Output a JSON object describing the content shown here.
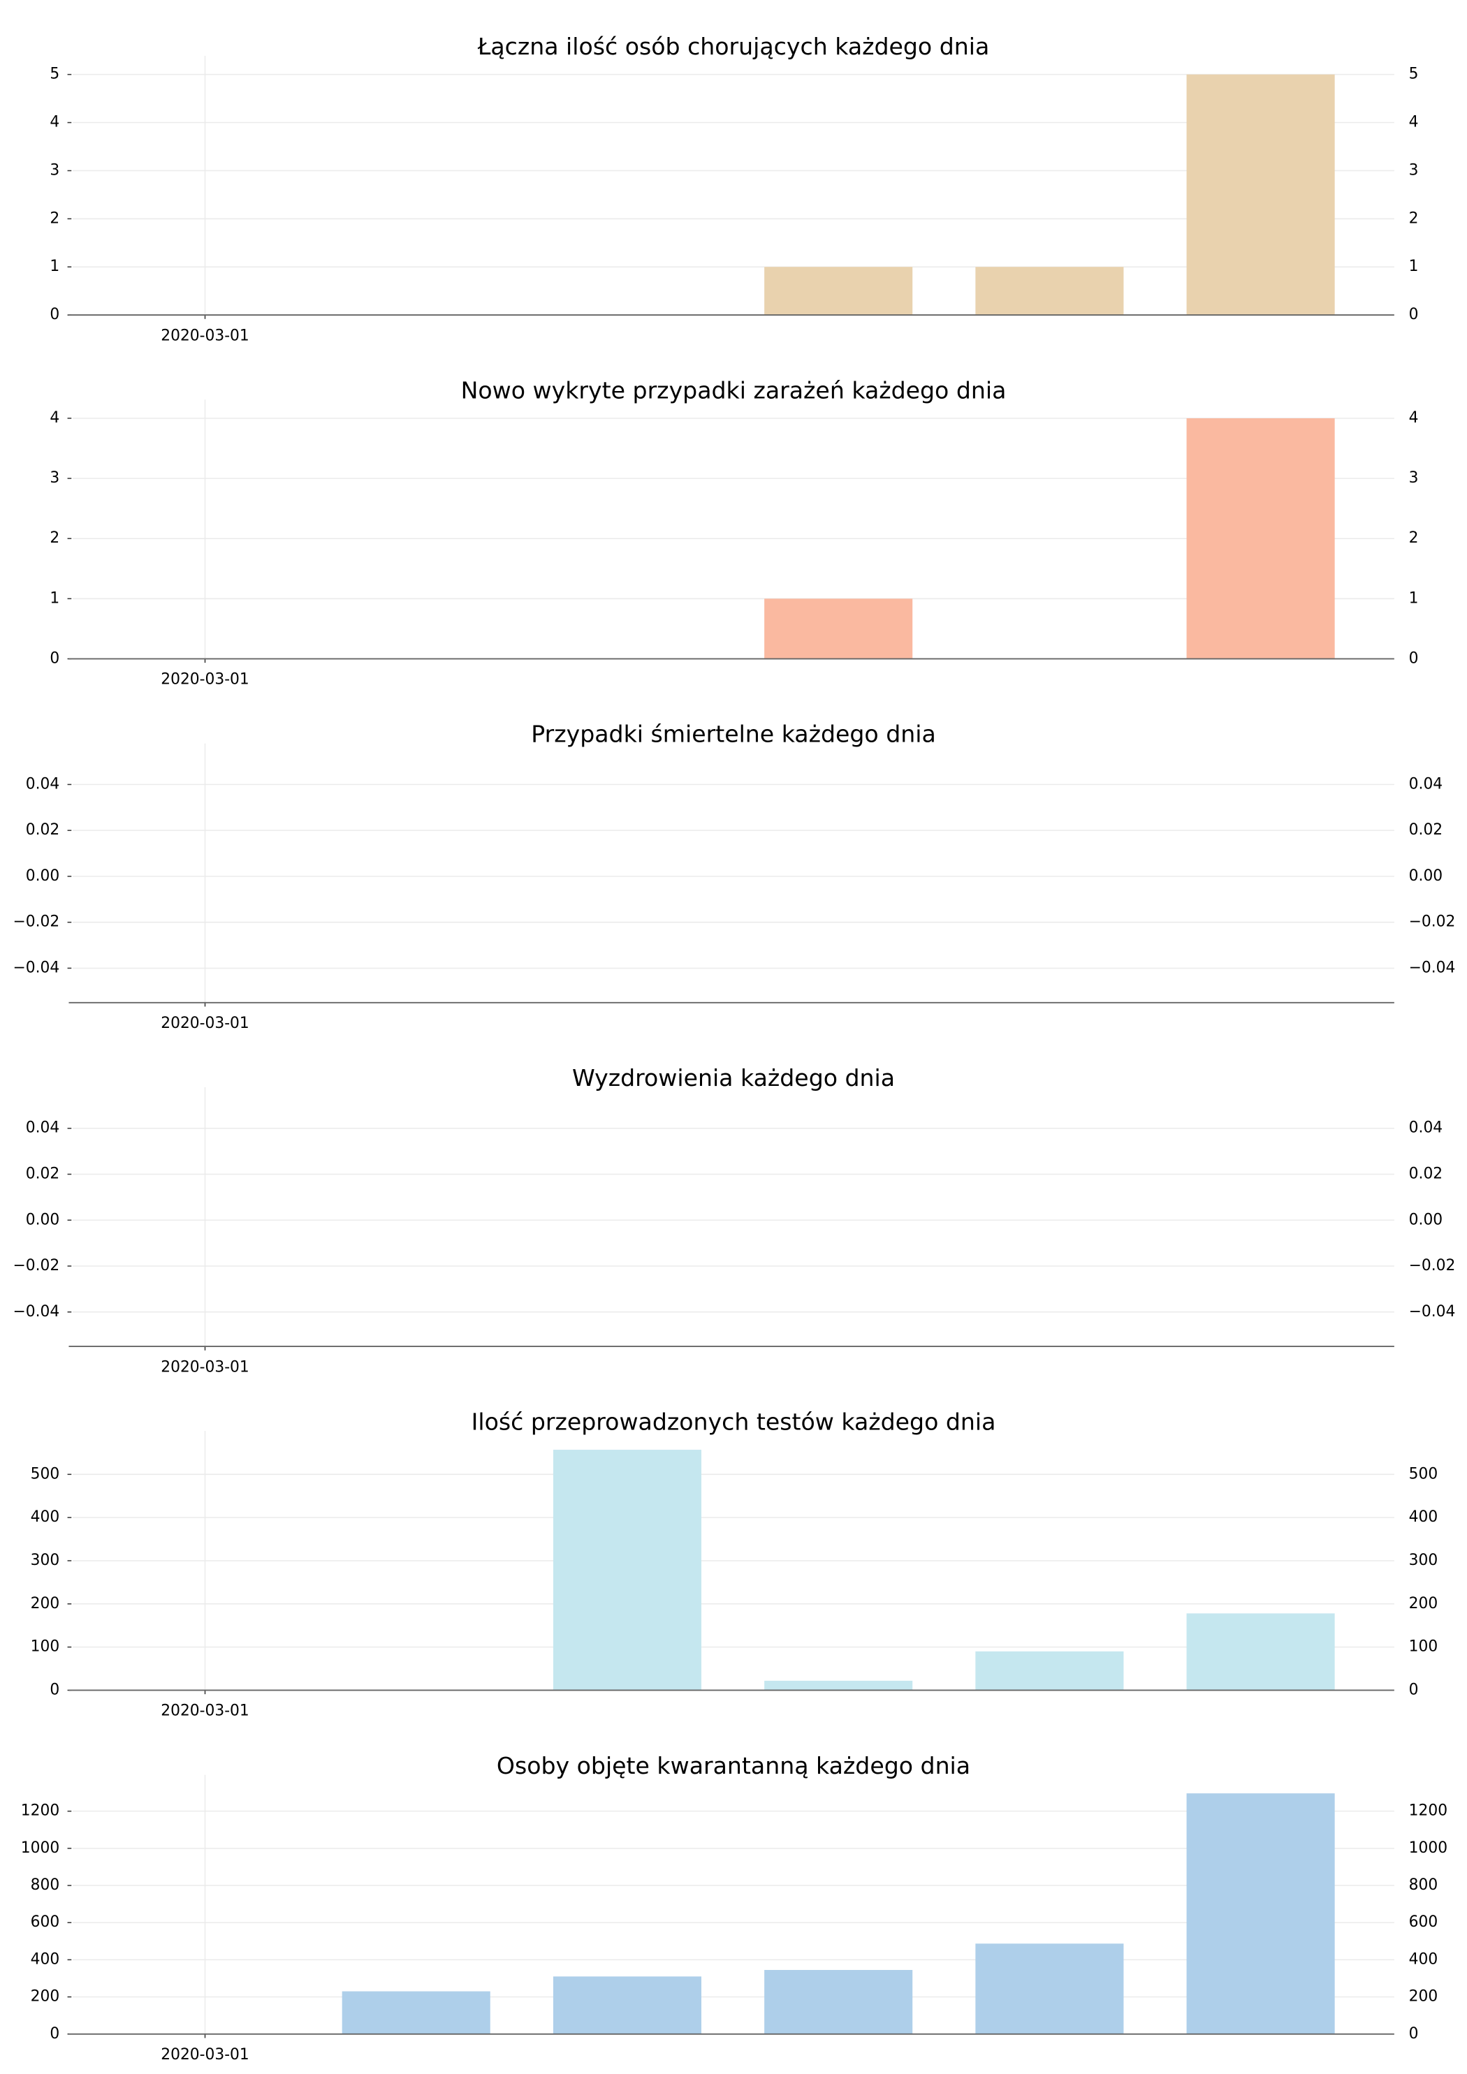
{
  "chart_data": [
    {
      "type": "bar",
      "title": "Łączna ilość osób chorujących każdego dnia",
      "categories": [
        "2020-03-01",
        null,
        null,
        null,
        null,
        null
      ],
      "values": [
        0,
        0,
        0,
        1,
        1,
        5
      ],
      "color": "#e9d2ae",
      "ylim": [
        0,
        5.25
      ],
      "yticks": [
        0,
        1,
        2,
        3,
        4,
        5
      ],
      "grid": true
    },
    {
      "type": "bar",
      "title": "Nowo wykryte przypadki zarażeń każdego dnia",
      "categories": [
        "2020-03-01",
        null,
        null,
        null,
        null,
        null
      ],
      "values": [
        0,
        0,
        0,
        1,
        0,
        4
      ],
      "color": "#fab9a0",
      "ylim": [
        0,
        4.2
      ],
      "yticks": [
        0,
        1,
        2,
        3,
        4
      ],
      "grid": true
    },
    {
      "type": "bar",
      "title": "Przypadki śmiertelne każdego dnia",
      "categories": [
        "2020-03-01",
        null,
        null,
        null,
        null,
        null
      ],
      "values": [
        0,
        0,
        0,
        0,
        0,
        0
      ],
      "color": "#c8c8c8",
      "ylim": [
        -0.055,
        0.055
      ],
      "yticks": [
        {
          "value": -0.04,
          "label": "−0.04"
        },
        {
          "value": -0.02,
          "label": "−0.02"
        },
        {
          "value": 0,
          "label": "0.00"
        },
        0.02,
        0.04
      ],
      "grid": true
    },
    {
      "type": "bar",
      "title": "Wyzdrowienia każdego dnia",
      "categories": [
        "2020-03-01",
        null,
        null,
        null,
        null,
        null
      ],
      "values": [
        0,
        0,
        0,
        0,
        0,
        0
      ],
      "color": "#c8c8c8",
      "ylim": [
        -0.055,
        0.055
      ],
      "yticks": [
        {
          "value": -0.04,
          "label": "−0.04"
        },
        {
          "value": -0.02,
          "label": "−0.02"
        },
        {
          "value": 0,
          "label": "0.00"
        },
        0.02,
        0.04
      ],
      "grid": true
    },
    {
      "type": "bar",
      "title": "Ilość przeprowadzonych testów każdego dnia",
      "categories": [
        "2020-03-01",
        null,
        null,
        null,
        null,
        null
      ],
      "values": [
        0,
        0,
        557,
        22,
        90,
        178
      ],
      "color": "#c5e7ef",
      "ylim": [
        0,
        585
      ],
      "yticks": [
        0,
        100,
        200,
        300,
        400,
        500
      ],
      "grid": true
    },
    {
      "type": "bar",
      "title": "Osoby objęte kwarantanną każdego dnia",
      "categories": [
        "2020-03-01",
        null,
        null,
        null,
        null,
        null
      ],
      "values": [
        0,
        230,
        310,
        345,
        487,
        1296
      ],
      "color": "#aecfea",
      "ylim": [
        0,
        1360
      ],
      "yticks": [
        0,
        200,
        400,
        600,
        800,
        1000,
        1200
      ],
      "grid": true
    }
  ]
}
